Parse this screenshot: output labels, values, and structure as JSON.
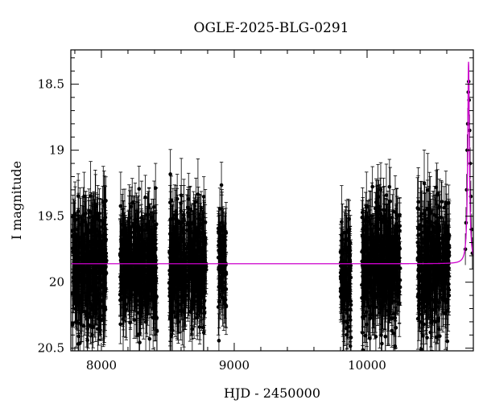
{
  "chart_data": {
    "type": "scatter",
    "title": "OGLE-2025-BLG-0291",
    "xlabel": "HJD - 2450000",
    "ylabel": "I magnitude",
    "xlim": [
      7770,
      10800
    ],
    "ylim": [
      20.52,
      18.24
    ],
    "y_inverted": true,
    "grid": false,
    "x_ticks": [
      8000,
      9000,
      10000
    ],
    "x_tick_labels": [
      "8000",
      "9000",
      "10000"
    ],
    "y_ticks": [
      18.5,
      19,
      19.5,
      20,
      20.5
    ],
    "y_tick_labels": [
      "18.5",
      "19",
      "19.5",
      "20",
      "20.5"
    ],
    "colors": {
      "model": "#cc00cc",
      "points": "#000000"
    },
    "series": [
      {
        "kind": "photometry",
        "style": "points-with-errorbars",
        "segments": [
          {
            "x_range": [
              7780,
              8040
            ],
            "mean_mag": 19.88,
            "scatter": 0.22,
            "error": 0.2
          },
          {
            "x_range": [
              8140,
              8420
            ],
            "mean_mag": 19.87,
            "scatter": 0.21,
            "error": 0.2
          },
          {
            "x_range": [
              8510,
              8790
            ],
            "mean_mag": 19.88,
            "scatter": 0.21,
            "error": 0.2
          },
          {
            "x_range": [
              8880,
              8940
            ],
            "mean_mag": 19.83,
            "scatter": 0.18,
            "error": 0.18
          },
          {
            "x_range": [
              9800,
              9880
            ],
            "mean_mag": 19.93,
            "scatter": 0.22,
            "error": 0.2
          },
          {
            "x_range": [
              9960,
              10250
            ],
            "mean_mag": 19.86,
            "scatter": 0.22,
            "error": 0.2
          },
          {
            "x_range": [
              10380,
              10620
            ],
            "mean_mag": 19.87,
            "scatter": 0.22,
            "error": 0.2
          }
        ],
        "peak_points": [
          {
            "x": 10740,
            "y": 19.75
          },
          {
            "x": 10745,
            "y": 19.55
          },
          {
            "x": 10750,
            "y": 19.3
          },
          {
            "x": 10754,
            "y": 19.0
          },
          {
            "x": 10758,
            "y": 18.8
          },
          {
            "x": 10762,
            "y": 18.56
          },
          {
            "x": 10765,
            "y": 18.48
          },
          {
            "x": 10768,
            "y": 18.62
          },
          {
            "x": 10772,
            "y": 18.85
          },
          {
            "x": 10776,
            "y": 19.1
          },
          {
            "x": 10781,
            "y": 19.35
          },
          {
            "x": 10787,
            "y": 19.6
          },
          {
            "x": 10793,
            "y": 19.78
          }
        ]
      },
      {
        "kind": "model",
        "style": "line",
        "baseline_mag": 19.86,
        "peak_x": 10764,
        "peak_mag": 18.33
      }
    ]
  }
}
